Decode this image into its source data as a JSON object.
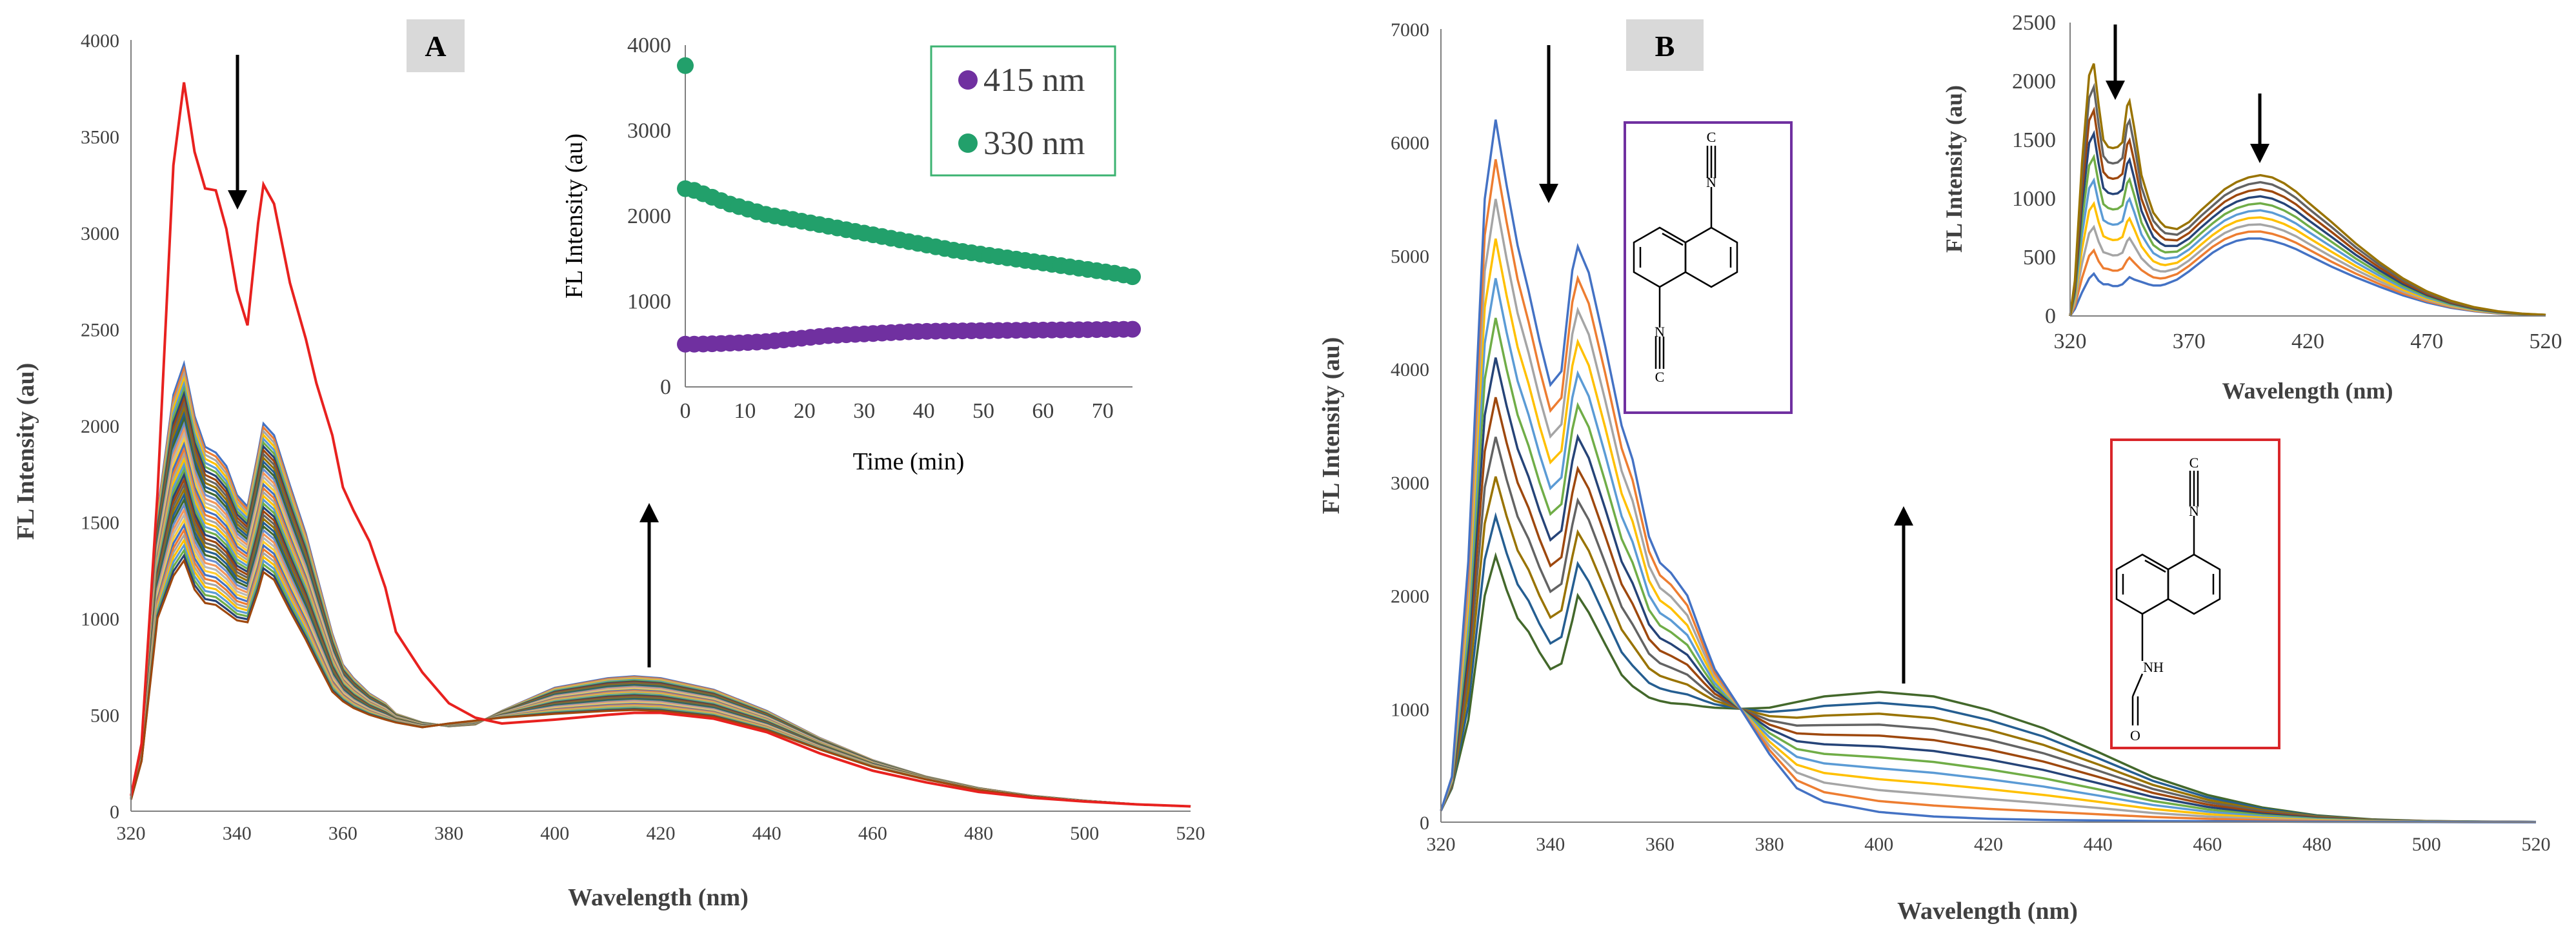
{
  "colors": {
    "axis": "#7f7f7f",
    "mainRed": "#e8211f",
    "inset330": "#22a06b",
    "inset415": "#7030a0",
    "legendBorder": "#3cb371",
    "struct1Border": "#7030a0",
    "struct2Border": "#d9262a",
    "panelTagBg": "#d9d9d9",
    "palette": [
      "#4472c4",
      "#ed7d31",
      "#a5a5a5",
      "#ffc000",
      "#5b9bd5",
      "#70ad47",
      "#264478",
      "#9e480e",
      "#636363",
      "#997300",
      "#255e91",
      "#43682b",
      "#698ed0",
      "#f1975a",
      "#b7b7b7",
      "#ffcd33"
    ]
  },
  "chart_data": [
    {
      "id": "A-main",
      "type": "line",
      "panel_label": "A",
      "xlabel": "Wavelength (nm)",
      "ylabel": "FL Intensity (au)",
      "xlim": [
        320,
        520
      ],
      "ylim": [
        0,
        4000
      ],
      "xticks": [
        "320",
        "340",
        "360",
        "380",
        "400",
        "420",
        "440",
        "460",
        "480",
        "500",
        "520"
      ],
      "yticks": [
        "0",
        "500",
        "1000",
        "1500",
        "2000",
        "2500",
        "3000",
        "3500",
        "4000"
      ],
      "x": [
        320,
        322,
        325,
        328,
        330,
        332,
        334,
        336,
        338,
        340,
        342,
        344,
        345,
        347,
        350,
        353,
        355,
        358,
        360,
        362,
        365,
        368,
        370,
        375,
        380,
        385,
        390,
        400,
        410,
        415,
        420,
        430,
        440,
        450,
        460,
        470,
        480,
        490,
        500,
        510,
        520
      ],
      "initial_spectrum": {
        "name": "initial",
        "values": [
          80,
          350,
          1650,
          3350,
          3780,
          3420,
          3230,
          3220,
          3020,
          2700,
          2520,
          3050,
          3250,
          3150,
          2740,
          2450,
          2220,
          1950,
          1680,
          1560,
          1400,
          1160,
          930,
          720,
          560,
          485,
          455,
          475,
          500,
          510,
          510,
          480,
          410,
          300,
          210,
          150,
          100,
          70,
          50,
          35,
          25
        ]
      },
      "spectra_family": {
        "count": 40,
        "first_spectrum": [
          70,
          320,
          1550,
          2160,
          2320,
          2050,
          1890,
          1860,
          1790,
          1640,
          1580,
          1860,
          2010,
          1950,
          1690,
          1440,
          1230,
          920,
          760,
          690,
          610,
          560,
          505,
          460,
          440,
          450,
          520,
          640,
          690,
          700,
          690,
          630,
          520,
          380,
          265,
          180,
          120,
          80,
          55,
          35,
          25
        ],
        "last_spectrum": [
          60,
          260,
          1000,
          1220,
          1300,
          1150,
          1080,
          1070,
          1030,
          990,
          980,
          1140,
          1240,
          1200,
          1040,
          890,
          780,
          620,
          570,
          535,
          500,
          475,
          460,
          435,
          455,
          470,
          485,
          505,
          520,
          525,
          520,
          490,
          420,
          320,
          230,
          165,
          110,
          75,
          50,
          35,
          25
        ]
      },
      "annotations": [
        "down arrow at 340 nm",
        "up arrow at 415 nm"
      ]
    },
    {
      "id": "A-inset",
      "type": "scatter",
      "xlabel": "Time (min)",
      "ylabel": "FL Intensity (au)",
      "xlim": [
        0,
        75
      ],
      "ylim": [
        0,
        4000
      ],
      "xticks": [
        "0",
        "10",
        "20",
        "30",
        "40",
        "50",
        "60",
        "70"
      ],
      "yticks": [
        "0",
        "1000",
        "2000",
        "3000",
        "4000"
      ],
      "legend": [
        "415 nm",
        "330 nm"
      ],
      "series": [
        {
          "name": "415 nm",
          "x0": 0,
          "dx": 1.5,
          "n": 51,
          "values": [
            500,
            500,
            502,
            505,
            508,
            512,
            515,
            520,
            525,
            530,
            540,
            550,
            560,
            570,
            580,
            590,
            600,
            605,
            610,
            615,
            620,
            625,
            630,
            635,
            640,
            645,
            648,
            650,
            652,
            654,
            655,
            656,
            657,
            658,
            659,
            660,
            661,
            662,
            663,
            664,
            665,
            666,
            667,
            668,
            669,
            670,
            671,
            672,
            673,
            674,
            675
          ]
        },
        {
          "name": "330 nm",
          "x0": 0,
          "dx": 1.5,
          "n": 51,
          "outlier_t0": 3760,
          "values": [
            2320,
            2300,
            2260,
            2220,
            2180,
            2140,
            2110,
            2080,
            2050,
            2020,
            2000,
            1980,
            1960,
            1940,
            1920,
            1900,
            1880,
            1860,
            1840,
            1820,
            1800,
            1780,
            1760,
            1740,
            1720,
            1700,
            1680,
            1660,
            1640,
            1620,
            1600,
            1585,
            1570,
            1555,
            1540,
            1525,
            1510,
            1495,
            1480,
            1465,
            1450,
            1435,
            1420,
            1405,
            1390,
            1375,
            1360,
            1345,
            1330,
            1310,
            1290
          ]
        }
      ]
    },
    {
      "id": "B-main",
      "type": "line",
      "panel_label": "B",
      "xlabel": "Wavelength (nm)",
      "ylabel": "FL Intensity (au)",
      "xlim": [
        320,
        520
      ],
      "ylim": [
        0,
        7000
      ],
      "xticks": [
        "320",
        "340",
        "360",
        "380",
        "400",
        "420",
        "440",
        "460",
        "480",
        "500",
        "520"
      ],
      "yticks": [
        "0",
        "1000",
        "2000",
        "3000",
        "4000",
        "5000",
        "6000",
        "7000"
      ],
      "x": [
        320,
        322,
        325,
        328,
        330,
        332,
        334,
        336,
        338,
        340,
        342,
        344,
        345,
        347,
        350,
        353,
        355,
        358,
        360,
        362,
        365,
        368,
        370,
        375,
        380,
        385,
        390,
        400,
        410,
        420,
        430,
        440,
        450,
        460,
        470,
        480,
        490,
        500,
        510,
        520
      ],
      "first_spectrum": [
        100,
        400,
        2300,
        5500,
        6200,
        5620,
        5090,
        4690,
        4250,
        3860,
        3980,
        4870,
        5080,
        4850,
        4200,
        3500,
        3200,
        2520,
        2290,
        2200,
        2000,
        1600,
        1350,
        980,
        600,
        300,
        180,
        90,
        50,
        30,
        20,
        15,
        10,
        8,
        5,
        3,
        2,
        1,
        0,
        0
      ],
      "last_spectrum": [
        100,
        300,
        900,
        2000,
        2350,
        2050,
        1800,
        1680,
        1500,
        1350,
        1400,
        1780,
        2000,
        1850,
        1570,
        1300,
        1200,
        1100,
        1070,
        1050,
        1040,
        1020,
        1010,
        1000,
        1010,
        1060,
        1110,
        1150,
        1110,
        990,
        830,
        620,
        400,
        240,
        130,
        60,
        25,
        10,
        5,
        2
      ],
      "count": 12,
      "annotations": [
        "down arrow at 340 nm",
        "up arrow at 405 nm"
      ],
      "structures": [
        "1,5-diisocyanonaphthalene",
        "N-(5-isocyanonaphthalen-1-yl)formamide"
      ]
    },
    {
      "id": "B-inset",
      "type": "line",
      "xlabel": "Wavelength (nm)",
      "ylabel": "FL Intensity (au)",
      "xlim": [
        320,
        520
      ],
      "ylim": [
        0,
        2500
      ],
      "xticks": [
        "320",
        "370",
        "420",
        "470",
        "520"
      ],
      "yticks": [
        "0",
        "500",
        "1000",
        "1500",
        "2000",
        "2500"
      ],
      "x": [
        320,
        322,
        325,
        328,
        330,
        332,
        334,
        336,
        338,
        340,
        342,
        344,
        345,
        347,
        350,
        353,
        355,
        358,
        360,
        365,
        370,
        375,
        380,
        385,
        390,
        395,
        400,
        405,
        410,
        415,
        420,
        430,
        440,
        450,
        460,
        470,
        480,
        490,
        500,
        510,
        520
      ],
      "first_spectrum": [
        0,
        60,
        200,
        320,
        360,
        300,
        270,
        270,
        255,
        255,
        270,
        310,
        330,
        310,
        290,
        270,
        260,
        260,
        270,
        310,
        380,
        460,
        540,
        600,
        640,
        660,
        660,
        640,
        610,
        570,
        520,
        420,
        330,
        250,
        175,
        115,
        70,
        40,
        20,
        10,
        5
      ],
      "last_spectrum": [
        0,
        300,
        1300,
        2050,
        2150,
        1800,
        1500,
        1440,
        1430,
        1440,
        1480,
        1790,
        1830,
        1600,
        1200,
        1000,
        880,
        800,
        760,
        740,
        800,
        900,
        990,
        1080,
        1140,
        1180,
        1200,
        1180,
        1130,
        1060,
        970,
        800,
        620,
        460,
        320,
        210,
        130,
        75,
        40,
        20,
        10
      ],
      "count": 10,
      "annotations": [
        "down arrow at 340 nm",
        "down arrow at 400 nm"
      ]
    }
  ]
}
